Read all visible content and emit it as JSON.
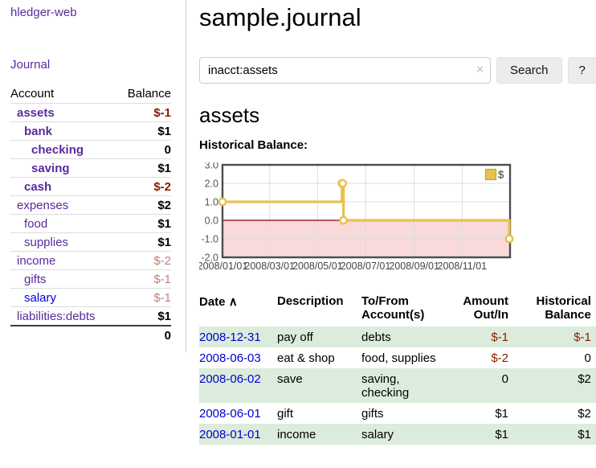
{
  "palette": {
    "link_purple": "#5b2a9d",
    "link_blue": "#0000cc",
    "negative_strong": "#8b1a00",
    "negative_soft": "#c27e7e",
    "row_green": "#dcecdc"
  },
  "app": {
    "brand": "hledger-web"
  },
  "sidebar": {
    "journal_link": "Journal",
    "table": {
      "account_header": "Account",
      "balance_header": "Balance",
      "total": "0",
      "accounts": [
        {
          "name": "assets",
          "balance": "$-1"
        },
        {
          "name": "bank",
          "balance": "$1"
        },
        {
          "name": "checking",
          "balance": "0"
        },
        {
          "name": "saving",
          "balance": "$1"
        },
        {
          "name": "cash",
          "balance": "$-2"
        },
        {
          "name": "expenses",
          "balance": "$2"
        },
        {
          "name": "food",
          "balance": "$1"
        },
        {
          "name": "supplies",
          "balance": "$1"
        },
        {
          "name": "income",
          "balance": "$-2"
        },
        {
          "name": "gifts",
          "balance": "$-1"
        },
        {
          "name": "salary",
          "balance": "$-1"
        },
        {
          "name": "liabilities:debts",
          "balance": "$1"
        }
      ]
    }
  },
  "main": {
    "title": "sample.journal",
    "search": {
      "value": "inacct:assets",
      "clear_icon": "×",
      "button_label": "Search",
      "help_label": "?"
    },
    "account_heading": "assets",
    "chart_label": "Historical Balance:"
  },
  "chart_data": {
    "type": "line",
    "title": "Historical Balance:",
    "step": true,
    "xlim": [
      "2008-01-01",
      "2009-01-01"
    ],
    "ylim": [
      -2,
      3
    ],
    "x_ticks": [
      "2008/01/01",
      "2008/03/01",
      "2008/05/01",
      "2008/07/01",
      "2008/09/01",
      "2008/11/01"
    ],
    "y_ticks": [
      "3.0",
      "2.0",
      "1.0",
      "0.0",
      "-1.0",
      "-2.0"
    ],
    "grid": true,
    "legend": {
      "label": "$",
      "position": "top-right"
    },
    "series": [
      {
        "name": "$",
        "points": [
          [
            "2008-01-01",
            1
          ],
          [
            "2008-06-01",
            2
          ],
          [
            "2008-06-02",
            2
          ],
          [
            "2008-06-03",
            0
          ],
          [
            "2008-12-31",
            -1
          ]
        ]
      }
    ],
    "colors": {
      "line": "#e8c14d",
      "marker_fill": "#ffffff",
      "zero_line": "#8b0000",
      "negative_region": "#f9dadb",
      "grid": "#dcdcdc",
      "border": "#4d4d4d",
      "legend_border": "#c2a03f",
      "tick_label": "#555555"
    }
  },
  "register": {
    "sort_icon": "∧",
    "headers": [
      "Date",
      "Description",
      "To/From\nAccount(s)",
      "Amount\nOut/In",
      "Historical\nBalance"
    ],
    "rows": [
      {
        "date": "2008-12-31",
        "description": "pay off",
        "accounts": "debts",
        "amount": "$-1",
        "balance": "$-1"
      },
      {
        "date": "2008-06-03",
        "description": "eat & shop",
        "accounts": "food, supplies",
        "amount": "$-2",
        "balance": "0"
      },
      {
        "date": "2008-06-02",
        "description": "save",
        "accounts": "saving,\nchecking",
        "amount": "0",
        "balance": "$2"
      },
      {
        "date": "2008-06-01",
        "description": "gift",
        "accounts": "gifts",
        "amount": "$1",
        "balance": "$2"
      },
      {
        "date": "2008-01-01",
        "description": "income",
        "accounts": "salary",
        "amount": "$1",
        "balance": "$1"
      }
    ]
  }
}
